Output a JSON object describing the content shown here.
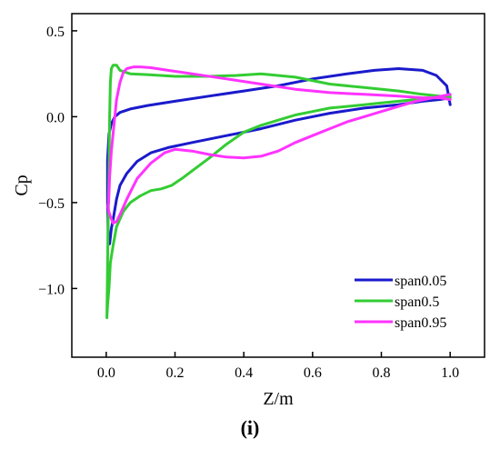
{
  "panel_label": "(i)",
  "chart_data": {
    "type": "line",
    "title": "",
    "xlabel": "Z/m",
    "ylabel": "Cp",
    "xlim": [
      -0.1,
      1.1
    ],
    "ylim": [
      -1.4,
      0.6
    ],
    "xticks": [
      0.0,
      0.2,
      0.4,
      0.6,
      0.8,
      1.0
    ],
    "xtick_labels": [
      "0.0",
      "0.2",
      "0.4",
      "0.6",
      "0.8",
      "1.0"
    ],
    "yticks": [
      0.5,
      0.0,
      -0.5,
      -1.0
    ],
    "ytick_labels": [
      "0.5",
      "0.0",
      "−0.5",
      "−1.0"
    ],
    "grid": false,
    "legend_position": "lower-right",
    "series": [
      {
        "name": "span0.05",
        "color": "#1a1acc",
        "x": [
          1.0,
          0.99,
          0.96,
          0.92,
          0.85,
          0.78,
          0.7,
          0.6,
          0.5,
          0.4,
          0.3,
          0.2,
          0.12,
          0.07,
          0.04,
          0.025,
          0.015,
          0.008,
          0.004,
          0.004,
          0.006,
          0.01,
          0.015,
          0.02,
          0.03,
          0.04,
          0.06,
          0.09,
          0.13,
          0.18,
          0.25,
          0.35,
          0.45,
          0.55,
          0.65,
          0.75,
          0.85,
          0.92,
          0.97,
          1.0
        ],
        "y": [
          0.07,
          0.18,
          0.24,
          0.27,
          0.28,
          0.27,
          0.25,
          0.22,
          0.18,
          0.15,
          0.12,
          0.09,
          0.065,
          0.045,
          0.025,
          0.0,
          -0.04,
          -0.1,
          -0.25,
          -0.5,
          -0.72,
          -0.74,
          -0.65,
          -0.6,
          -0.48,
          -0.4,
          -0.33,
          -0.26,
          -0.21,
          -0.18,
          -0.15,
          -0.11,
          -0.07,
          -0.02,
          0.02,
          0.05,
          0.07,
          0.09,
          0.1,
          0.11
        ]
      },
      {
        "name": "span0.5",
        "color": "#33cc33",
        "x": [
          1.0,
          0.97,
          0.92,
          0.85,
          0.75,
          0.65,
          0.55,
          0.45,
          0.38,
          0.3,
          0.2,
          0.12,
          0.07,
          0.04,
          0.03,
          0.02,
          0.015,
          0.012,
          0.01,
          0.008,
          0.005,
          0.003,
          0.002,
          0.004,
          0.008,
          0.012,
          0.02,
          0.03,
          0.05,
          0.07,
          0.1,
          0.13,
          0.16,
          0.19,
          0.22,
          0.26,
          0.3,
          0.35,
          0.4,
          0.45,
          0.5,
          0.55,
          0.6,
          0.65,
          0.7,
          0.75,
          0.8,
          0.85,
          0.9,
          0.95,
          1.0
        ],
        "y": [
          0.11,
          0.12,
          0.13,
          0.15,
          0.17,
          0.19,
          0.23,
          0.25,
          0.24,
          0.235,
          0.235,
          0.245,
          0.25,
          0.27,
          0.3,
          0.3,
          0.28,
          0.2,
          0.0,
          -0.3,
          -0.7,
          -1.0,
          -1.17,
          -1.1,
          -1.0,
          -0.85,
          -0.75,
          -0.64,
          -0.55,
          -0.5,
          -0.46,
          -0.43,
          -0.42,
          -0.4,
          -0.36,
          -0.3,
          -0.24,
          -0.16,
          -0.09,
          -0.05,
          -0.02,
          0.01,
          0.03,
          0.05,
          0.06,
          0.07,
          0.08,
          0.09,
          0.1,
          0.11,
          0.12
        ]
      },
      {
        "name": "span0.95",
        "color": "#ff33ff",
        "x": [
          1.0,
          0.97,
          0.92,
          0.85,
          0.75,
          0.65,
          0.55,
          0.45,
          0.35,
          0.25,
          0.18,
          0.13,
          0.1,
          0.08,
          0.06,
          0.05,
          0.04,
          0.03,
          0.025,
          0.02,
          0.015,
          0.01,
          0.007,
          0.005,
          0.007,
          0.012,
          0.02,
          0.03,
          0.04,
          0.06,
          0.09,
          0.13,
          0.17,
          0.2,
          0.25,
          0.3,
          0.35,
          0.4,
          0.45,
          0.5,
          0.55,
          0.6,
          0.65,
          0.7,
          0.75,
          0.8,
          0.85,
          0.9,
          0.95,
          1.0
        ],
        "y": [
          0.1,
          0.11,
          0.11,
          0.12,
          0.13,
          0.14,
          0.16,
          0.19,
          0.22,
          0.25,
          0.27,
          0.285,
          0.29,
          0.29,
          0.28,
          0.26,
          0.2,
          0.1,
          0.0,
          -0.1,
          -0.2,
          -0.35,
          -0.5,
          -0.52,
          -0.55,
          -0.58,
          -0.62,
          -0.61,
          -0.57,
          -0.48,
          -0.36,
          -0.27,
          -0.21,
          -0.19,
          -0.2,
          -0.22,
          -0.235,
          -0.24,
          -0.23,
          -0.2,
          -0.15,
          -0.11,
          -0.07,
          -0.03,
          0.0,
          0.03,
          0.06,
          0.09,
          0.11,
          0.13
        ]
      }
    ]
  }
}
